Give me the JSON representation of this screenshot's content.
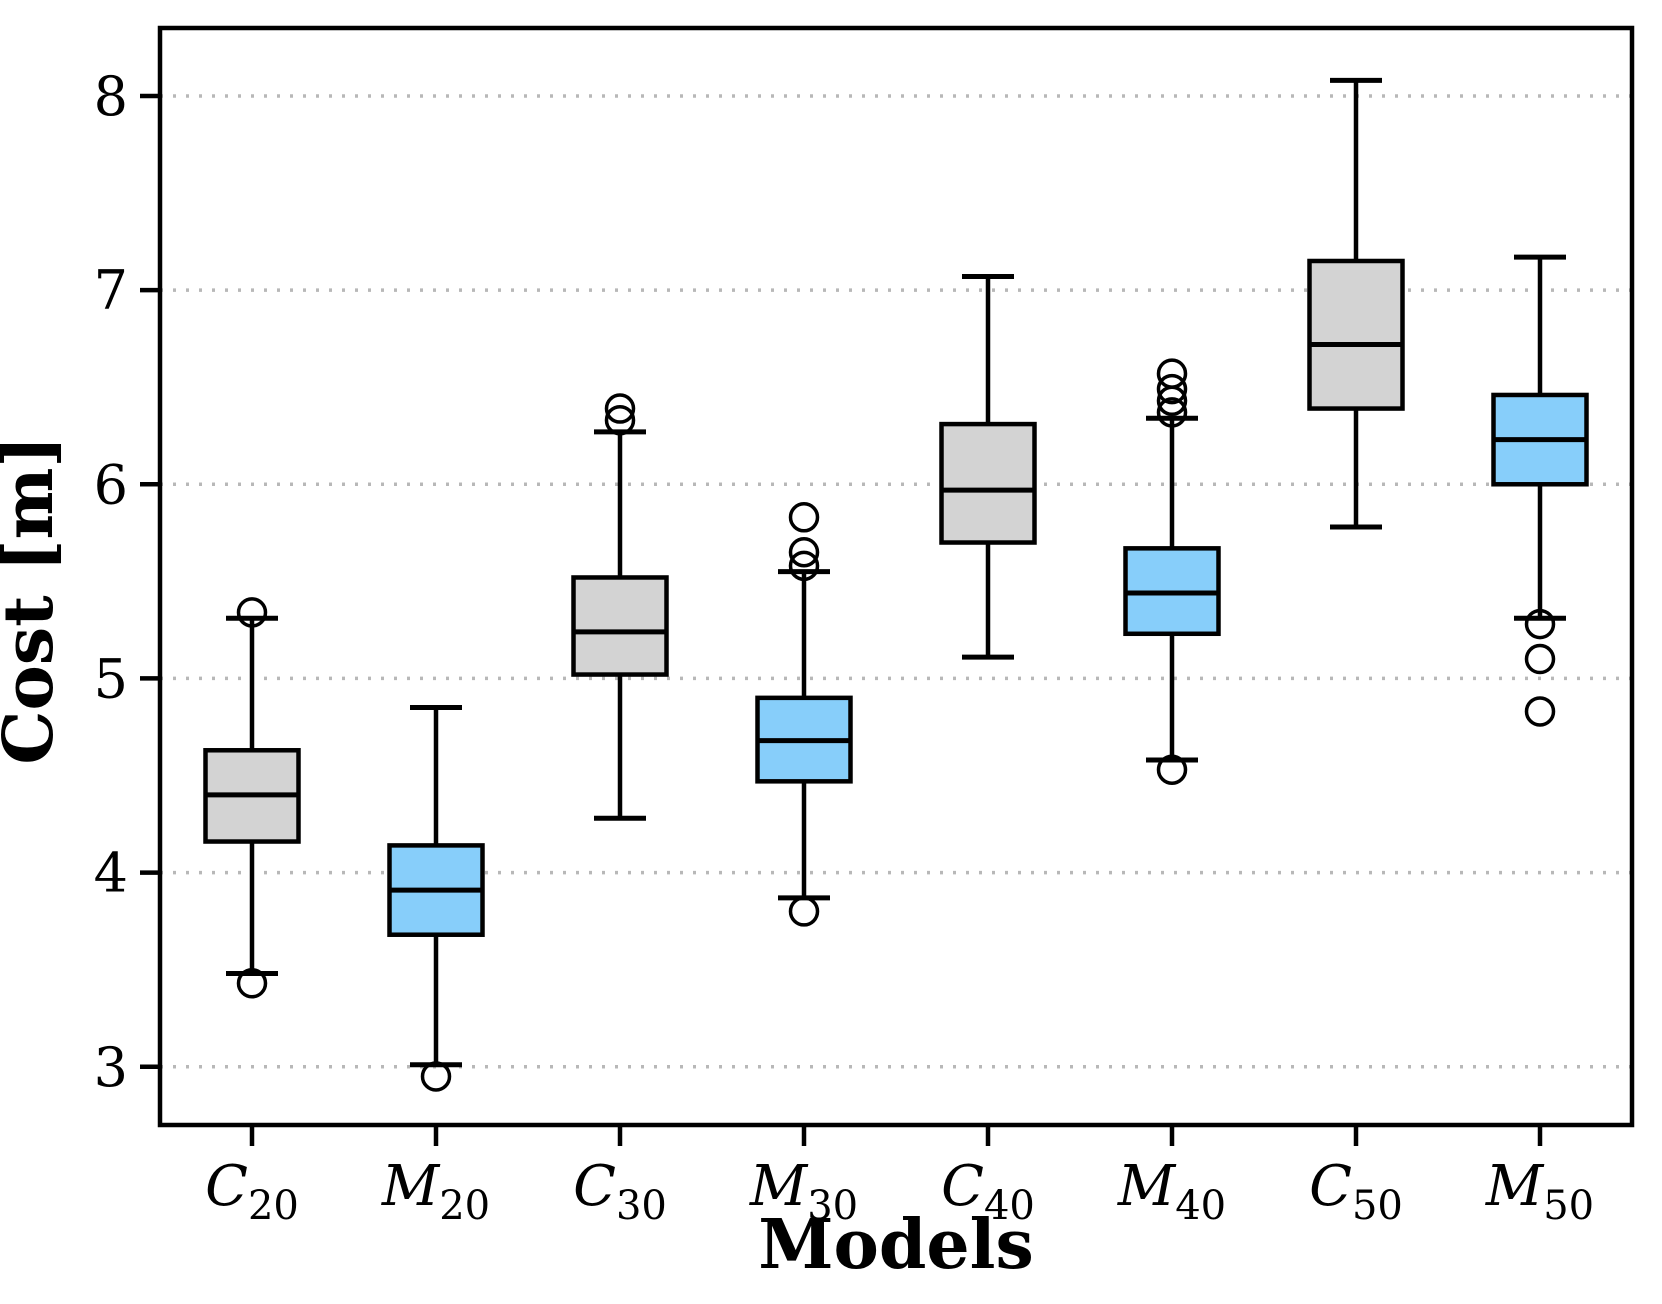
{
  "figure": {
    "background": "#ffffff",
    "frame_color": "#000000"
  },
  "colors": {
    "gray": "#d3d3d3",
    "blue": "#87cefa",
    "line": "#000000",
    "grid": "#b8b8b8"
  },
  "chart_data": {
    "type": "boxplot",
    "title": "",
    "xlabel": "Models",
    "ylabel": "Cost [m]",
    "ylim": [
      2.7,
      8.35
    ],
    "yticks": [
      3,
      4,
      5,
      6,
      7,
      8
    ],
    "grid": "horizontal-dotted",
    "legend": "none",
    "categories": [
      "C20",
      "M20",
      "C30",
      "M30",
      "C40",
      "M40",
      "C50",
      "M50"
    ],
    "boxes": [
      {
        "label": "C20",
        "base": "C",
        "sub": "20",
        "fill": "gray",
        "whisker_low": 3.48,
        "q1": 4.16,
        "median": 4.4,
        "q3": 4.63,
        "whisker_high": 5.31,
        "outliers": [
          5.34,
          3.43
        ]
      },
      {
        "label": "M20",
        "base": "M",
        "sub": "20",
        "fill": "blue",
        "whisker_low": 3.01,
        "q1": 3.68,
        "median": 3.91,
        "q3": 4.14,
        "whisker_high": 4.85,
        "outliers": [
          2.95
        ]
      },
      {
        "label": "C30",
        "base": "C",
        "sub": "30",
        "fill": "gray",
        "whisker_low": 4.28,
        "q1": 5.02,
        "median": 5.24,
        "q3": 5.52,
        "whisker_high": 6.27,
        "outliers": [
          6.39,
          6.33
        ]
      },
      {
        "label": "M30",
        "base": "M",
        "sub": "30",
        "fill": "blue",
        "whisker_low": 3.87,
        "q1": 4.47,
        "median": 4.68,
        "q3": 4.9,
        "whisker_high": 5.55,
        "outliers": [
          5.83,
          5.65,
          5.58,
          3.8
        ]
      },
      {
        "label": "C40",
        "base": "C",
        "sub": "40",
        "fill": "gray",
        "whisker_low": 5.11,
        "q1": 5.7,
        "median": 5.97,
        "q3": 6.31,
        "whisker_high": 7.07,
        "outliers": []
      },
      {
        "label": "M40",
        "base": "M",
        "sub": "40",
        "fill": "blue",
        "whisker_low": 4.58,
        "q1": 5.23,
        "median": 5.44,
        "q3": 5.67,
        "whisker_high": 6.34,
        "outliers": [
          6.57,
          6.49,
          6.43,
          6.37,
          4.53
        ]
      },
      {
        "label": "C50",
        "base": "C",
        "sub": "50",
        "fill": "gray",
        "whisker_low": 5.78,
        "q1": 6.39,
        "median": 6.72,
        "q3": 7.15,
        "whisker_high": 8.08,
        "outliers": []
      },
      {
        "label": "M50",
        "base": "M",
        "sub": "50",
        "fill": "blue",
        "whisker_low": 5.31,
        "q1": 6.0,
        "median": 6.23,
        "q3": 6.46,
        "whisker_high": 7.17,
        "outliers": [
          5.28,
          5.1,
          4.83
        ]
      }
    ]
  }
}
